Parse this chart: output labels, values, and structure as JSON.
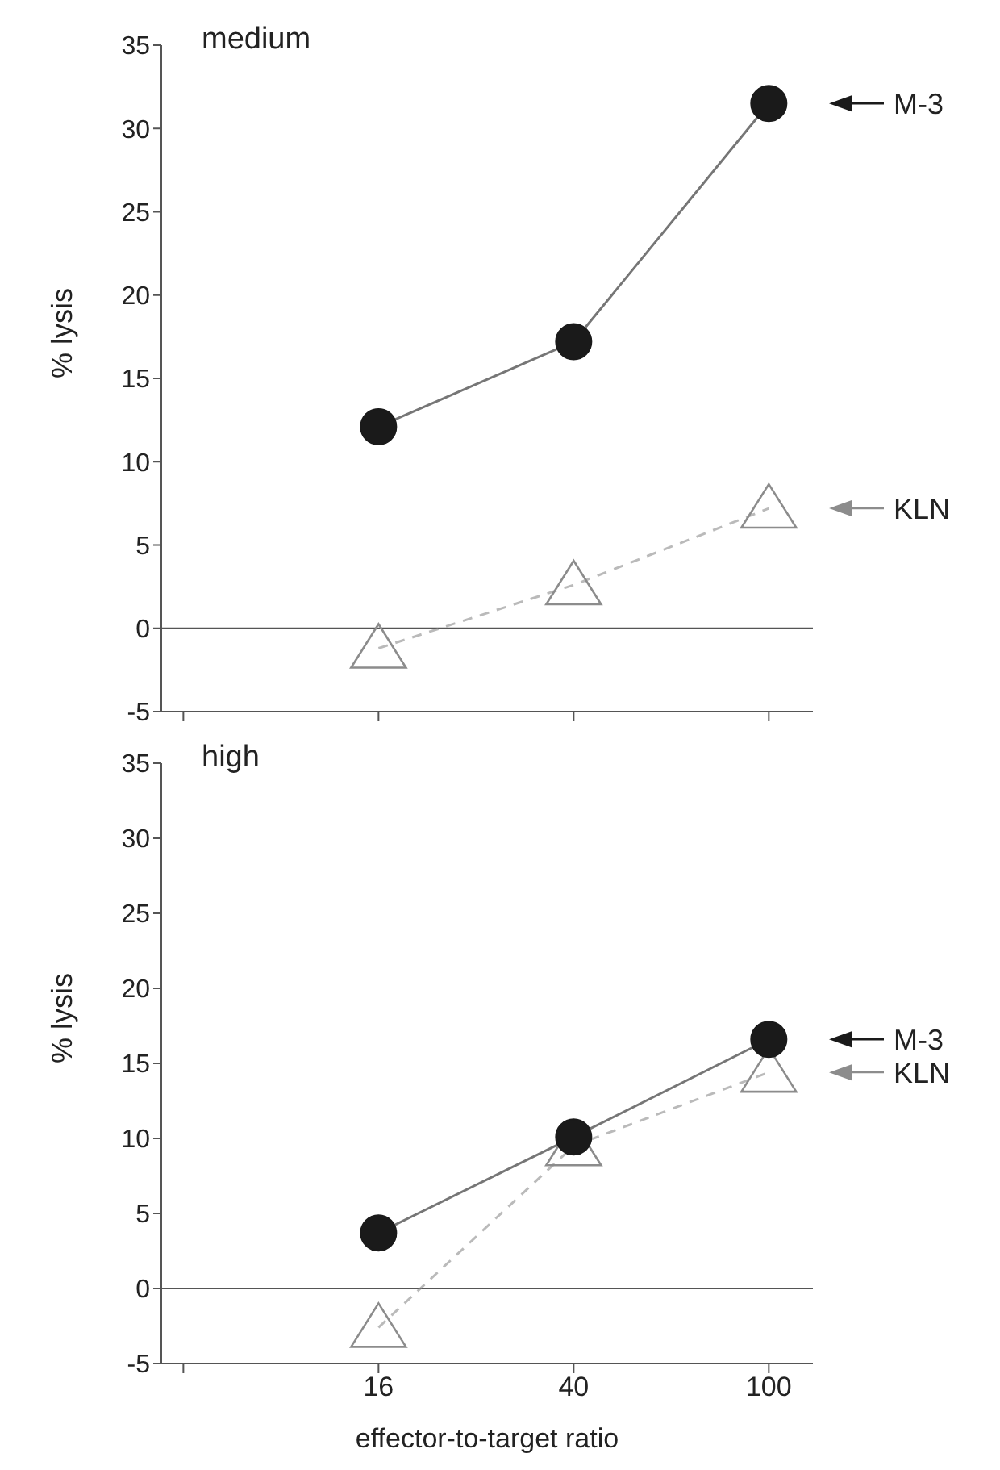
{
  "chart_data": [
    {
      "type": "line",
      "title": "medium",
      "ylabel": "% lysis",
      "log": "x",
      "xlim": [
        5.77,
        123
      ],
      "xticks": [
        {
          "value": 6.4,
          "label": null
        },
        16,
        40,
        100
      ],
      "ylim": [
        -5,
        35
      ],
      "yticks": [
        -5,
        0,
        5,
        10,
        15,
        20,
        25,
        30,
        35
      ],
      "grid": false,
      "legend": "right",
      "tick_labels": "y",
      "x": [
        16,
        40,
        100
      ],
      "ref_lines": [
        {
          "axis": "y",
          "value": 0
        }
      ],
      "series": [
        {
          "name": "M-3",
          "color": "#1a1a1a",
          "values": [
            12.1,
            17.2,
            31.5
          ],
          "marker": "circle",
          "line_style": "solid"
        },
        {
          "name": "KLN",
          "color": "#8c8c8c",
          "values": [
            -1.2,
            2.6,
            7.2
          ],
          "marker": "triangle",
          "line_style": "dashed"
        }
      ]
    },
    {
      "type": "line",
      "title": "high",
      "ylabel": "% lysis",
      "xlabel": "effector-to-target ratio",
      "log": "x",
      "xlim": [
        5.77,
        123
      ],
      "xticks": [
        {
          "value": 6.4,
          "label": null
        },
        16,
        40,
        100
      ],
      "ylim": [
        -5,
        35
      ],
      "yticks": [
        -5,
        0,
        5,
        10,
        15,
        20,
        25,
        30,
        35
      ],
      "grid": false,
      "legend": "right",
      "x": [
        16,
        40,
        100
      ],
      "ref_lines": [
        {
          "axis": "y",
          "value": 0
        }
      ],
      "series": [
        {
          "name": "M-3",
          "color": "#1a1a1a",
          "values": [
            3.7,
            10.1,
            16.6
          ],
          "marker": "circle",
          "line_style": "solid"
        },
        {
          "name": "KLN",
          "color": "#8c8c8c",
          "values": [
            -2.6,
            9.5,
            14.4
          ],
          "marker": "triangle",
          "line_style": "dashed"
        }
      ]
    }
  ]
}
